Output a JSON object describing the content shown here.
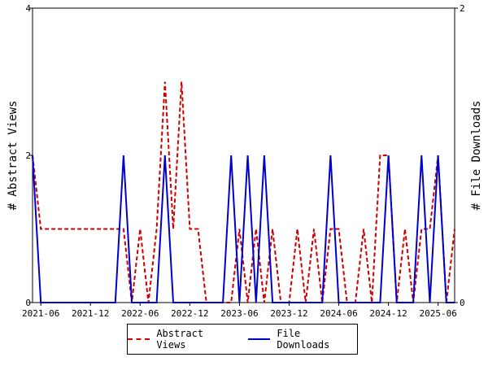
{
  "chart_data": {
    "type": "line",
    "x": [
      "2021-05",
      "2021-06",
      "2021-07",
      "2021-08",
      "2021-09",
      "2021-10",
      "2021-11",
      "2021-12",
      "2022-01",
      "2022-02",
      "2022-03",
      "2022-04",
      "2022-05",
      "2022-06",
      "2022-07",
      "2022-08",
      "2022-09",
      "2022-10",
      "2022-11",
      "2022-12",
      "2023-01",
      "2023-02",
      "2023-03",
      "2023-04",
      "2023-05",
      "2023-06",
      "2023-07",
      "2023-08",
      "2023-09",
      "2023-10",
      "2023-11",
      "2023-12",
      "2024-01",
      "2024-02",
      "2024-03",
      "2024-04",
      "2024-05",
      "2024-06",
      "2024-07",
      "2024-08",
      "2024-09",
      "2024-10",
      "2024-11",
      "2024-12",
      "2025-01",
      "2025-02",
      "2025-03",
      "2025-04",
      "2025-05",
      "2025-06",
      "2025-07",
      "2025-08"
    ],
    "series": [
      {
        "name": "Abstract Views",
        "axis": "left",
        "color": "#cc0000",
        "style": "dashed",
        "values": [
          2,
          1,
          1,
          1,
          1,
          1,
          1,
          1,
          1,
          1,
          1,
          1,
          0,
          1,
          0,
          1,
          3,
          1,
          3,
          1,
          1,
          0,
          0,
          0,
          0,
          1,
          0,
          1,
          0,
          1,
          0,
          0,
          1,
          0,
          1,
          0,
          1,
          1,
          0,
          0,
          1,
          0,
          2,
          2,
          0,
          1,
          0,
          1,
          1,
          2,
          0,
          1
        ]
      },
      {
        "name": "File Downloads",
        "axis": "right",
        "color": "#0000cc",
        "style": "solid",
        "values": [
          1,
          0,
          0,
          0,
          0,
          0,
          0,
          0,
          0,
          0,
          0,
          1,
          0,
          0,
          0,
          0,
          1,
          0,
          0,
          0,
          0,
          0,
          0,
          0,
          1,
          0,
          1,
          0,
          1,
          0,
          0,
          0,
          0,
          0,
          0,
          0,
          1,
          0,
          0,
          0,
          0,
          0,
          0,
          1,
          0,
          0,
          0,
          1,
          0,
          1,
          0,
          0
        ]
      }
    ],
    "x_tick_labels": [
      "2021-06",
      "2021-12",
      "2022-06",
      "2022-12",
      "2023-06",
      "2023-12",
      "2024-06",
      "2024-12",
      "2025-06"
    ],
    "y_left": {
      "label": "# Abstract Views",
      "ticks": [
        "0",
        "2",
        "4"
      ],
      "lim": [
        0,
        4
      ]
    },
    "y_right": {
      "label": "# File Downloads",
      "ticks": [
        "0",
        "2"
      ],
      "lim": [
        0,
        2
      ]
    },
    "grid": false,
    "legend_position": "bottom"
  }
}
